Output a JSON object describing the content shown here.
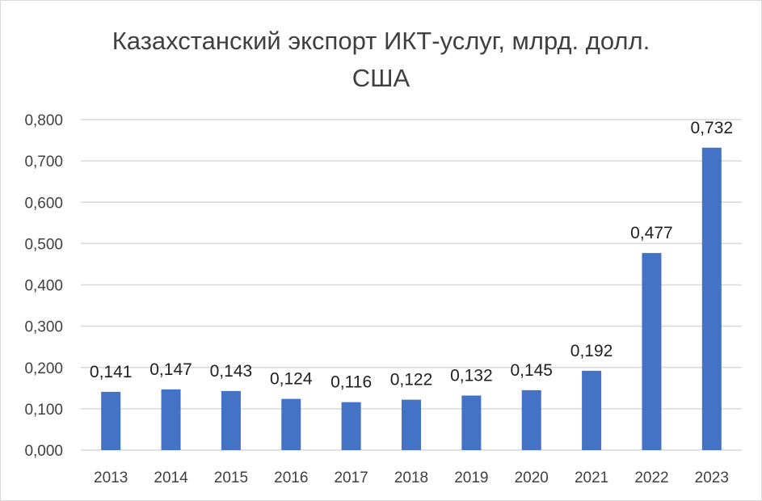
{
  "chart_data": {
    "type": "bar",
    "title_lines": [
      "Казахстанский экспорт ИКТ-услуг, млрд. долл.",
      "США"
    ],
    "categories": [
      "2013",
      "2014",
      "2015",
      "2016",
      "2017",
      "2018",
      "2019",
      "2020",
      "2021",
      "2022",
      "2023"
    ],
    "values": [
      0.141,
      0.147,
      0.143,
      0.124,
      0.116,
      0.122,
      0.132,
      0.145,
      0.192,
      0.477,
      0.732
    ],
    "value_labels": [
      "0,141",
      "0,147",
      "0,143",
      "0,124",
      "0,116",
      "0,122",
      "0,132",
      "0,145",
      "0,192",
      "0,477",
      "0,732"
    ],
    "y_ticks": [
      0,
      0.1,
      0.2,
      0.3,
      0.4,
      0.5,
      0.6,
      0.7,
      0.8
    ],
    "y_tick_labels": [
      "0,000",
      "0,100",
      "0,200",
      "0,300",
      "0,400",
      "0,500",
      "0,600",
      "0,700",
      "0,800"
    ],
    "ylim": [
      0,
      0.8
    ],
    "grid": true,
    "legend": "none",
    "bar_color": "#4472c4",
    "grid_color": "#d9d9d9"
  }
}
